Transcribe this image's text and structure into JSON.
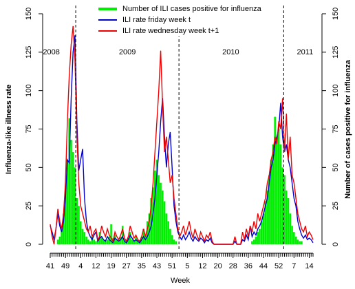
{
  "chart_data": {
    "type": "line",
    "xlabel": "Week",
    "ylabel": "Influenza-like illness rate",
    "y2label": "Number of cases positive for influenza",
    "annotations": [
      "2008",
      "2009",
      "2010",
      "2011"
    ],
    "vlines": [
      13.4,
      67.6,
      122.6
    ],
    "legend": "top",
    "xlim": [
      0,
      138
    ],
    "xticks": [
      {
        "value": 0,
        "label": "41"
      },
      {
        "value": 8,
        "label": "49"
      },
      {
        "value": 16,
        "label": "4"
      },
      {
        "value": 24,
        "label": "12"
      },
      {
        "value": 32,
        "label": "19"
      },
      {
        "value": 40,
        "label": "27"
      },
      {
        "value": 48,
        "label": "35"
      },
      {
        "value": 56,
        "label": "43"
      },
      {
        "value": 64,
        "label": "51"
      },
      {
        "value": 72,
        "label": "5"
      },
      {
        "value": 80,
        "label": "12"
      },
      {
        "value": 88,
        "label": "20"
      },
      {
        "value": 96,
        "label": "28"
      },
      {
        "value": 104,
        "label": "36"
      },
      {
        "value": 112,
        "label": "44"
      },
      {
        "value": 120,
        "label": "52"
      },
      {
        "value": 128,
        "label": "7"
      },
      {
        "value": 136,
        "label": "14"
      }
    ],
    "ylim": [
      0,
      150
    ],
    "yticks": [
      0,
      25,
      50,
      75,
      100,
      125,
      150
    ],
    "y2lim": [
      0,
      150
    ],
    "y2ticks": [
      0,
      25,
      50,
      75,
      100,
      125,
      150
    ],
    "x": [
      0,
      1,
      2,
      3,
      4,
      5,
      6,
      7,
      8,
      9,
      10,
      11,
      12,
      13,
      14,
      15,
      16,
      17,
      18,
      19,
      20,
      21,
      22,
      23,
      24,
      25,
      26,
      27,
      28,
      29,
      30,
      31,
      32,
      33,
      34,
      35,
      36,
      37,
      38,
      39,
      40,
      41,
      42,
      43,
      44,
      45,
      46,
      47,
      48,
      49,
      50,
      51,
      52,
      53,
      54,
      55,
      56,
      57,
      58,
      59,
      60,
      61,
      62,
      63,
      64,
      65,
      66,
      67,
      68,
      69,
      70,
      71,
      72,
      73,
      74,
      75,
      76,
      77,
      78,
      79,
      80,
      81,
      82,
      83,
      84,
      85,
      86,
      87,
      88,
      89,
      90,
      91,
      92,
      93,
      94,
      95,
      96,
      97,
      98,
      99,
      100,
      101,
      102,
      103,
      104,
      105,
      106,
      107,
      108,
      109,
      110,
      111,
      112,
      113,
      114,
      115,
      116,
      117,
      118,
      119,
      120,
      121,
      122,
      123,
      124,
      125,
      126,
      127,
      128,
      129,
      130,
      131,
      132,
      133,
      134,
      135,
      136,
      137,
      138
    ],
    "series": [
      {
        "name": "Number of ILI cases positive for influenza",
        "color": "#00ee00",
        "kind": "bar",
        "axis": "y2",
        "values": [
          0,
          0,
          0,
          0,
          3,
          5,
          10,
          20,
          35,
          55,
          82,
          68,
          60,
          50,
          30,
          25,
          15,
          10,
          8,
          5,
          3,
          2,
          5,
          3,
          2,
          4,
          8,
          5,
          3,
          2,
          3,
          5,
          13,
          4,
          6,
          3,
          2,
          5,
          12,
          3,
          2,
          4,
          8,
          3,
          2,
          5,
          3,
          2,
          5,
          10,
          6,
          15,
          20,
          30,
          37,
          48,
          55,
          45,
          40,
          35,
          28,
          20,
          15,
          10,
          6,
          3,
          2,
          0,
          0,
          0,
          0,
          0,
          0,
          0,
          0,
          0,
          0,
          0,
          0,
          0,
          0,
          0,
          0,
          0,
          0,
          0,
          0,
          0,
          0,
          0,
          0,
          0,
          0,
          0,
          0,
          0,
          0,
          0,
          0,
          0,
          0,
          0,
          0,
          0,
          0,
          0,
          2,
          3,
          5,
          8,
          10,
          15,
          20,
          28,
          35,
          45,
          55,
          65,
          83,
          70,
          75,
          65,
          50,
          45,
          35,
          30,
          20,
          12,
          8,
          5,
          3,
          2,
          2,
          0,
          0,
          0,
          0,
          0,
          0
        ]
      },
      {
        "name": "ILI rate friday week t",
        "color": "#0000cc",
        "kind": "line",
        "values": [
          12,
          8,
          3,
          10,
          20,
          12,
          8,
          15,
          30,
          55,
          53,
          95,
          125,
          136,
          80,
          48,
          55,
          62,
          30,
          15,
          8,
          5,
          3,
          6,
          8,
          2,
          4,
          5,
          3,
          2,
          5,
          3,
          2,
          1,
          4,
          3,
          2,
          3,
          5,
          2,
          1,
          3,
          6,
          4,
          2,
          3,
          2,
          1,
          3,
          5,
          3,
          5,
          8,
          12,
          20,
          30,
          45,
          60,
          80,
          95,
          70,
          50,
          65,
          73,
          50,
          25,
          15,
          8,
          5,
          3,
          6,
          3,
          5,
          8,
          4,
          2,
          5,
          3,
          2,
          4,
          3,
          1,
          3,
          2,
          4,
          1,
          0,
          0,
          0,
          0,
          0,
          0,
          0,
          0,
          0,
          0,
          0,
          2,
          0,
          0,
          0,
          3,
          2,
          6,
          3,
          12,
          5,
          8,
          6,
          10,
          12,
          15,
          20,
          25,
          30,
          40,
          50,
          55,
          65,
          70,
          75,
          92,
          70,
          60,
          65,
          55,
          50,
          40,
          30,
          25,
          15,
          10,
          6,
          4,
          6,
          3,
          4,
          3,
          1
        ]
      },
      {
        "name": "ILI rate wednesday week t+1",
        "color": "#ee0000",
        "kind": "line",
        "values": [
          13,
          5,
          0,
          10,
          23,
          15,
          10,
          20,
          40,
          80,
          110,
          130,
          142,
          120,
          70,
          40,
          25,
          20,
          15,
          10,
          8,
          12,
          5,
          8,
          10,
          3,
          5,
          12,
          8,
          5,
          10,
          6,
          4,
          2,
          8,
          5,
          3,
          6,
          10,
          4,
          2,
          5,
          12,
          8,
          4,
          6,
          3,
          2,
          5,
          10,
          5,
          10,
          15,
          25,
          40,
          60,
          80,
          100,
          126,
          90,
          60,
          70,
          55,
          40,
          45,
          30,
          20,
          10,
          5,
          8,
          12,
          6,
          10,
          15,
          8,
          4,
          10,
          6,
          3,
          8,
          5,
          2,
          6,
          4,
          8,
          2,
          0,
          0,
          0,
          0,
          0,
          0,
          0,
          0,
          0,
          0,
          0,
          5,
          0,
          0,
          0,
          8,
          3,
          10,
          5,
          12,
          8,
          15,
          10,
          20,
          15,
          20,
          25,
          30,
          40,
          45,
          55,
          60,
          70,
          65,
          80,
          75,
          95,
          60,
          85,
          55,
          70,
          45,
          40,
          30,
          20,
          15,
          10,
          8,
          12,
          5,
          8,
          6,
          3
        ]
      }
    ]
  }
}
